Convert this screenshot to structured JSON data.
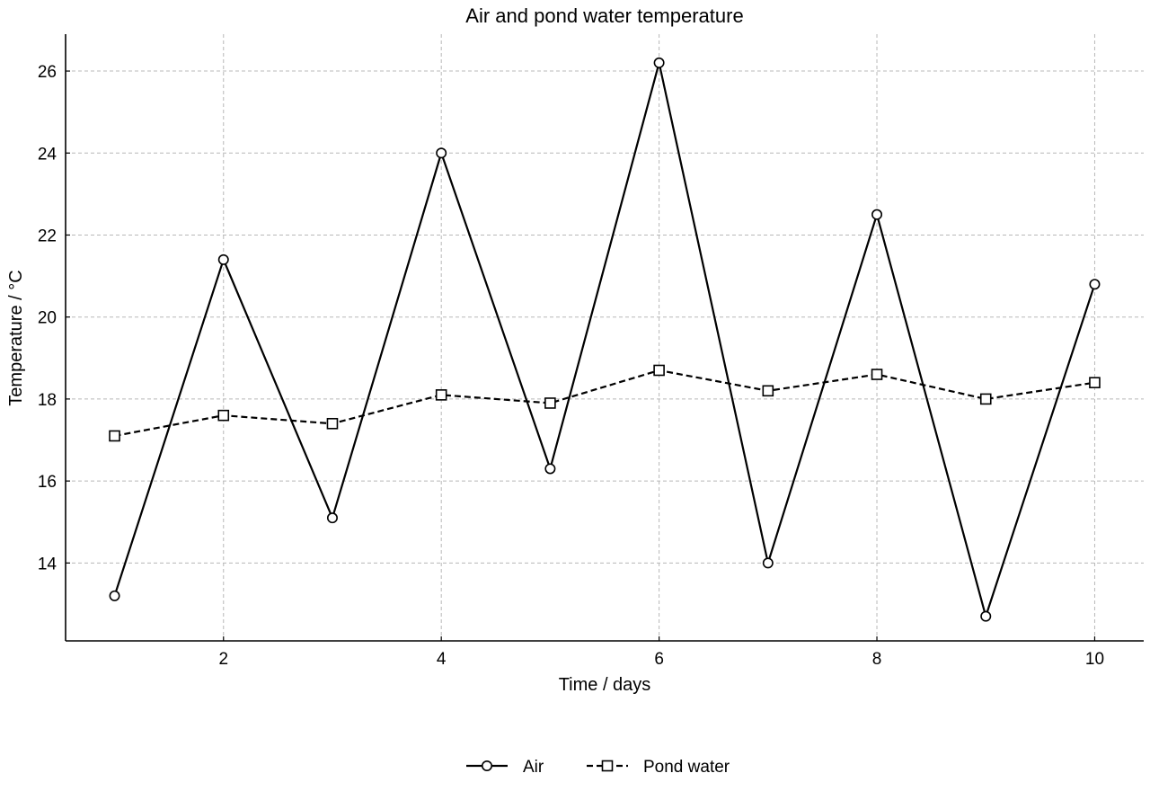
{
  "chart_data": {
    "type": "line",
    "title": "Air and pond water temperature",
    "xlabel": "Time / days",
    "ylabel": "Temperature / °C",
    "x": [
      1,
      2,
      3,
      4,
      5,
      6,
      7,
      8,
      9,
      10
    ],
    "xlim": [
      0.55,
      10.45
    ],
    "ylim": [
      12.1,
      26.9
    ],
    "xticks": [
      2,
      4,
      6,
      8,
      10
    ],
    "yticks": [
      14,
      16,
      18,
      20,
      22,
      24,
      26
    ],
    "grid": true,
    "legend_position": "bottom-center",
    "series": [
      {
        "name": "Air",
        "values": [
          13.2,
          21.4,
          15.1,
          24.0,
          16.3,
          26.2,
          14.0,
          22.5,
          12.7,
          20.8
        ],
        "line_style": "solid",
        "marker": "circle",
        "color": "#000000"
      },
      {
        "name": "Pond water",
        "values": [
          17.1,
          17.6,
          17.4,
          18.1,
          17.9,
          18.7,
          18.2,
          18.6,
          18.0,
          18.4
        ],
        "line_style": "dashed",
        "marker": "square",
        "color": "#000000"
      }
    ]
  }
}
